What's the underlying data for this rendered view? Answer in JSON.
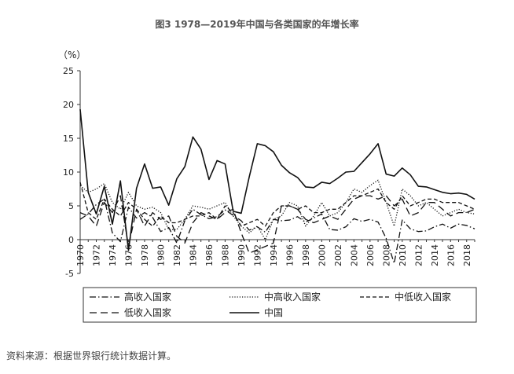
{
  "title": "图3 1978—2019年中国与各类国家的年增长率",
  "source_note": "资料来源：根据世界银行统计数据计算。",
  "chart_data": {
    "type": "line",
    "ylabel": "（%）",
    "ylim": [
      -5,
      25
    ],
    "yticks": [
      -5,
      0,
      5,
      10,
      15,
      20,
      25
    ],
    "xlim": [
      1970,
      2019
    ],
    "xticks": [
      1970,
      1972,
      1974,
      1976,
      1978,
      1980,
      1982,
      1984,
      1986,
      1988,
      1990,
      1992,
      1994,
      1996,
      1998,
      2000,
      2002,
      2004,
      2006,
      2008,
      2010,
      2012,
      2014,
      2016,
      2018
    ],
    "legend_position": "bottom",
    "x": [
      1970,
      1971,
      1972,
      1973,
      1974,
      1975,
      1976,
      1977,
      1978,
      1979,
      1980,
      1981,
      1982,
      1983,
      1984,
      1985,
      1986,
      1987,
      1988,
      1989,
      1990,
      1991,
      1992,
      1993,
      1994,
      1995,
      1996,
      1997,
      1998,
      1999,
      2000,
      2001,
      2002,
      2003,
      2004,
      2005,
      2006,
      2007,
      2008,
      2009,
      2010,
      2011,
      2012,
      2013,
      2014,
      2015,
      2016,
      2017,
      2018,
      2019
    ],
    "series": [
      {
        "name": "高收入国家",
        "style": "dashdot",
        "values": [
          3.0,
          3.8,
          5.2,
          6.0,
          1.0,
          -0.3,
          4.8,
          3.2,
          4.0,
          3.3,
          1.2,
          1.8,
          -0.5,
          2.8,
          4.5,
          3.7,
          3.1,
          3.4,
          4.4,
          3.6,
          2.8,
          1.4,
          1.9,
          1.1,
          3.0,
          2.8,
          2.9,
          3.4,
          2.6,
          3.2,
          3.8,
          1.5,
          1.4,
          1.9,
          3.1,
          2.7,
          3.0,
          2.6,
          0.2,
          -3.5,
          2.9,
          1.6,
          1.2,
          1.3,
          1.9,
          2.3,
          1.7,
          2.3,
          2.1,
          1.6
        ]
      },
      {
        "name": "中高收入国家",
        "style": "dotted",
        "values": [
          8.0,
          7.0,
          7.5,
          8.3,
          5.5,
          4.5,
          7.0,
          5.0,
          4.5,
          4.8,
          4.0,
          1.5,
          1.5,
          3.0,
          5.0,
          4.8,
          4.5,
          5.0,
          5.5,
          3.5,
          2.0,
          1.0,
          2.0,
          0.0,
          3.0,
          3.5,
          5.5,
          5.0,
          2.0,
          3.5,
          5.5,
          3.5,
          4.0,
          5.5,
          7.5,
          7.0,
          8.0,
          8.8,
          5.5,
          2.0,
          7.5,
          6.5,
          5.0,
          5.5,
          4.5,
          3.5,
          4.0,
          4.5,
          4.0,
          3.8
        ]
      },
      {
        "name": "中低收入国家",
        "style": "dashed",
        "values": [
          8.5,
          4.0,
          3.0,
          6.0,
          4.5,
          3.5,
          5.5,
          4.5,
          3.0,
          2.0,
          3.5,
          2.5,
          2.5,
          3.0,
          3.5,
          3.5,
          4.0,
          3.0,
          5.0,
          4.0,
          2.0,
          2.5,
          3.0,
          2.0,
          4.0,
          5.0,
          5.0,
          4.5,
          5.0,
          4.0,
          4.0,
          4.5,
          4.5,
          5.5,
          6.5,
          6.5,
          7.0,
          7.5,
          5.5,
          4.5,
          6.5,
          5.0,
          5.5,
          6.0,
          6.0,
          5.5,
          5.5,
          5.5,
          5.0,
          4.5
        ]
      },
      {
        "name": "低收入国家",
        "style": "longdash",
        "values": [
          4.0,
          3.5,
          2.0,
          5.5,
          4.0,
          6.5,
          -1.0,
          4.5,
          2.0,
          4.0,
          3.0,
          3.5,
          0.5,
          -0.5,
          2.5,
          4.0,
          3.5,
          3.0,
          4.0,
          4.5,
          1.0,
          -2.0,
          -1.5,
          -1.0,
          -0.5,
          5.0,
          5.0,
          4.5,
          3.0,
          2.5,
          3.0,
          3.5,
          3.0,
          4.5,
          6.0,
          6.5,
          6.5,
          6.0,
          6.5,
          5.0,
          6.0,
          3.5,
          4.0,
          5.5,
          5.5,
          4.5,
          3.5,
          4.0,
          4.0,
          4.5
        ]
      },
      {
        "name": "中国",
        "style": "solid",
        "values": [
          19.3,
          7.0,
          3.8,
          7.9,
          2.3,
          8.7,
          -1.6,
          7.6,
          11.2,
          7.6,
          7.8,
          5.1,
          9.0,
          10.8,
          15.2,
          13.4,
          8.9,
          11.7,
          11.2,
          4.2,
          3.9,
          9.3,
          14.2,
          13.9,
          13.0,
          11.0,
          9.9,
          9.2,
          7.8,
          7.7,
          8.5,
          8.3,
          9.1,
          10.0,
          10.1,
          11.4,
          12.7,
          14.2,
          9.7,
          9.4,
          10.6,
          9.6,
          7.9,
          7.8,
          7.4,
          7.0,
          6.8,
          6.9,
          6.7,
          6.0
        ]
      }
    ]
  }
}
